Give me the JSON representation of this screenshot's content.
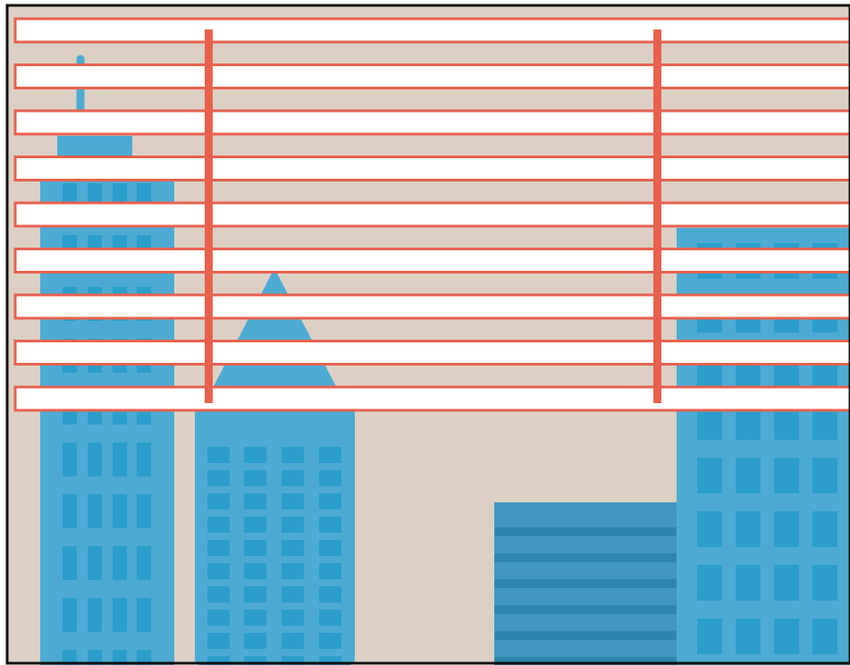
{
  "scene": {
    "description_name": "city-skyline-behind-window-blinds",
    "colors": {
      "sky": "#dcd0c4",
      "frame": "#111111",
      "building_light": "#4dabd3",
      "window_dark": "#2c9ecb",
      "building_mid": "#4297bf",
      "stripe": "#2f86ad",
      "slat_fill": "#ffffff",
      "slat_border": "#e8614e",
      "cord": "#e8614e"
    },
    "slat_count": 9,
    "cord_count": 2
  }
}
